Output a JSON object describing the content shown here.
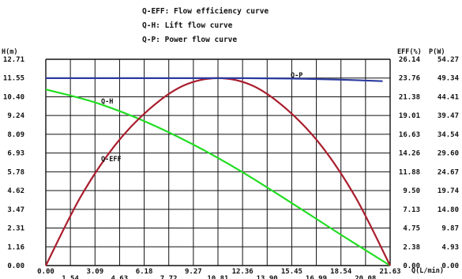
{
  "chart_data": {
    "type": "line",
    "legend": [
      "Q-EFF: Flow efficiency curve",
      "Q-H: Lift flow curve",
      "Q-P: Power flow curve"
    ],
    "x_ticks_upper": [
      "0.00",
      "3.09",
      "6.18",
      "9.27",
      "12.36",
      "15.45",
      "18.54",
      "21.63"
    ],
    "x_ticks_lower": [
      "1.54",
      "4.63",
      "7.72",
      "10.81",
      "13.90",
      "16.99",
      "20.08"
    ],
    "xlabel": "Q(L/min)",
    "xlim": [
      0,
      21.63
    ],
    "h_axis": {
      "label": "H(m)",
      "ticks": [
        "12.71",
        "11.55",
        "10.40",
        "9.24",
        "8.09",
        "6.93",
        "5.78",
        "4.62",
        "3.47",
        "2.31",
        "1.16",
        "0.00"
      ],
      "ylim": [
        0,
        12.71
      ]
    },
    "eff_axis": {
      "label": "EFF(%)",
      "ticks": [
        "26.14",
        "23.76",
        "21.38",
        "19.01",
        "16.63",
        "14.26",
        "11.88",
        "9.50",
        "7.13",
        "4.75",
        "2.38",
        "0.00"
      ],
      "ylim": [
        0,
        26.14
      ]
    },
    "p_axis": {
      "label": "P(W)",
      "ticks": [
        "54.27",
        "49.34",
        "44.41",
        "39.47",
        "34.54",
        "29.60",
        "24.67",
        "19.74",
        "14.80",
        "9.87",
        "4.93",
        "0.00"
      ],
      "ylim": [
        0,
        54.27
      ]
    },
    "series": [
      {
        "name": "Q-H",
        "axis": "h_axis",
        "color": "#22dd22",
        "x": [
          0,
          3.09,
          6.18,
          9.27,
          12.36,
          15.45,
          18.54,
          21.63
        ],
        "y": [
          10.85,
          10.05,
          8.9,
          7.45,
          5.75,
          3.85,
          1.9,
          0.0
        ]
      },
      {
        "name": "Q-EFF",
        "axis": "eff_axis",
        "color": "#aa1e2e",
        "x": [
          0,
          2.16,
          4.33,
          6.49,
          8.65,
          10.81,
          12.98,
          15.14,
          17.3,
          19.47,
          21.63
        ],
        "y": [
          0.0,
          8.6,
          15.2,
          19.8,
          22.8,
          23.75,
          22.8,
          19.8,
          15.2,
          8.6,
          0.0
        ]
      },
      {
        "name": "Q-P",
        "axis": "p_axis",
        "color": "#2b3a9e",
        "x": [
          0,
          3.09,
          6.18,
          9.27,
          12.36,
          15.45,
          18.54,
          21.16
        ],
        "y": [
          49.3,
          49.3,
          49.3,
          49.3,
          49.3,
          49.2,
          48.9,
          48.5
        ]
      }
    ],
    "annotations": [
      "Q-H",
      "Q-EFF",
      "Q-P"
    ],
    "grid": true
  }
}
